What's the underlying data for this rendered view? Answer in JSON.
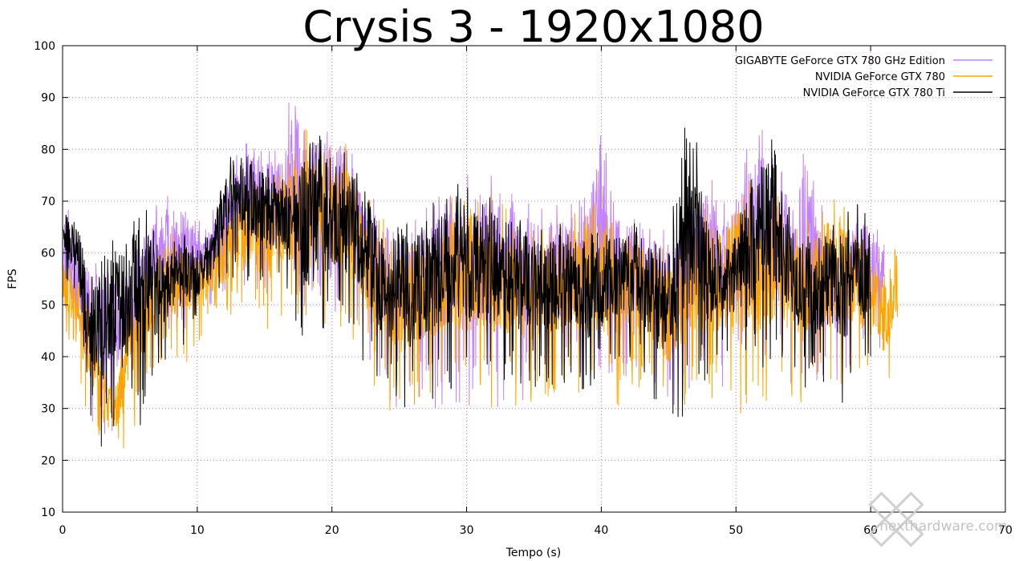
{
  "chart_data": {
    "type": "line",
    "title": "Crysis 3 - 1920x1080",
    "xlabel": "Tempo (s)",
    "ylabel": "FPS",
    "xlim": [
      0,
      70
    ],
    "ylim": [
      10,
      100
    ],
    "x_ticks": [
      0,
      10,
      20,
      30,
      40,
      50,
      60,
      70
    ],
    "y_ticks": [
      10,
      20,
      30,
      40,
      50,
      60,
      70,
      80,
      90,
      100
    ],
    "grid": true,
    "legend_position": "top-right",
    "series": [
      {
        "name": "GIGABYTE GeForce GTX 780 GHz Edition",
        "color": "#c080ff",
        "x_end": 61,
        "envelope": {
          "x": [
            0,
            1,
            2,
            3,
            4,
            5,
            6,
            7,
            8,
            9,
            10,
            11,
            12,
            13,
            14,
            15,
            16,
            17,
            18,
            19,
            20,
            21,
            22,
            23,
            24,
            25,
            26,
            27,
            28,
            29,
            30,
            31,
            32,
            33,
            34,
            35,
            36,
            37,
            38,
            39,
            40,
            41,
            42,
            43,
            44,
            45,
            46,
            47,
            48,
            49,
            50,
            51,
            52,
            53,
            54,
            55,
            56,
            57,
            58,
            59,
            60,
            61
          ],
          "high": [
            70,
            66,
            60,
            58,
            54,
            58,
            66,
            70,
            72,
            70,
            66,
            68,
            72,
            80,
            82,
            80,
            82,
            91,
            84,
            86,
            84,
            85,
            76,
            72,
            70,
            68,
            66,
            70,
            72,
            76,
            76,
            76,
            75,
            74,
            72,
            70,
            70,
            70,
            72,
            74,
            88,
            70,
            72,
            68,
            66,
            64,
            70,
            74,
            76,
            70,
            72,
            82,
            84,
            80,
            74,
            80,
            72,
            66,
            64,
            70,
            68,
            64
          ],
          "low": [
            45,
            40,
            22,
            23,
            27,
            36,
            36,
            40,
            44,
            44,
            50,
            50,
            52,
            54,
            52,
            50,
            50,
            48,
            44,
            50,
            48,
            46,
            44,
            38,
            30,
            30,
            30,
            30,
            30,
            30,
            30,
            30,
            30,
            30,
            31,
            32,
            34,
            34,
            36,
            30,
            34,
            36,
            36,
            38,
            34,
            26,
            30,
            34,
            32,
            34,
            36,
            34,
            34,
            36,
            34,
            34,
            34,
            34,
            36,
            38,
            40,
            40
          ]
        }
      },
      {
        "name": "NVIDIA GeForce GTX 780",
        "color": "#ffa500",
        "x_end": 62,
        "envelope": {
          "x": [
            0,
            1,
            2,
            3,
            4,
            5,
            6,
            7,
            8,
            9,
            10,
            11,
            12,
            13,
            14,
            15,
            16,
            17,
            18,
            19,
            20,
            21,
            22,
            23,
            24,
            25,
            26,
            27,
            28,
            29,
            30,
            31,
            32,
            33,
            34,
            35,
            36,
            37,
            38,
            39,
            40,
            41,
            42,
            43,
            44,
            45,
            46,
            47,
            48,
            49,
            50,
            51,
            52,
            53,
            54,
            55,
            56,
            57,
            58,
            59,
            60,
            61,
            62
          ],
          "high": [
            60,
            56,
            52,
            40,
            36,
            52,
            58,
            62,
            66,
            62,
            60,
            62,
            66,
            74,
            76,
            74,
            76,
            80,
            84,
            82,
            80,
            82,
            72,
            70,
            66,
            64,
            62,
            66,
            68,
            72,
            72,
            72,
            72,
            70,
            68,
            66,
            66,
            66,
            68,
            70,
            70,
            66,
            66,
            64,
            62,
            60,
            64,
            70,
            72,
            66,
            74,
            74,
            70,
            72,
            66,
            66,
            68,
            72,
            70,
            66,
            62,
            56,
            64
          ],
          "low": [
            44,
            40,
            24,
            19,
            21,
            22,
            34,
            36,
            38,
            38,
            42,
            46,
            48,
            48,
            46,
            44,
            46,
            44,
            42,
            46,
            46,
            44,
            42,
            34,
            30,
            28,
            30,
            30,
            30,
            30,
            30,
            30,
            30,
            30,
            30,
            30,
            32,
            32,
            34,
            30,
            32,
            30,
            32,
            34,
            32,
            26,
            30,
            32,
            30,
            32,
            28,
            30,
            30,
            32,
            32,
            30,
            32,
            32,
            34,
            36,
            34,
            33,
            36
          ]
        }
      },
      {
        "name": "NVIDIA GeForce GTX 780 Ti",
        "color": "#000000",
        "x_end": 60,
        "envelope": {
          "x": [
            0,
            1,
            2,
            3,
            4,
            5,
            6,
            7,
            8,
            9,
            10,
            11,
            12,
            13,
            14,
            15,
            16,
            17,
            18,
            19,
            20,
            21,
            22,
            23,
            24,
            25,
            26,
            27,
            28,
            29,
            30,
            31,
            32,
            33,
            34,
            35,
            36,
            37,
            38,
            39,
            40,
            41,
            42,
            43,
            44,
            45,
            46,
            47,
            48,
            49,
            50,
            51,
            52,
            53,
            54,
            55,
            56,
            57,
            58,
            59,
            60
          ],
          "high": [
            69,
            68,
            61,
            60,
            64,
            68,
            70,
            64,
            62,
            64,
            62,
            64,
            78,
            80,
            80,
            78,
            76,
            74,
            82,
            84,
            82,
            80,
            78,
            72,
            64,
            68,
            66,
            72,
            72,
            74,
            74,
            72,
            72,
            70,
            68,
            66,
            64,
            68,
            66,
            64,
            64,
            66,
            66,
            66,
            64,
            62,
            84,
            86,
            66,
            64,
            66,
            76,
            82,
            82,
            68,
            64,
            64,
            66,
            68,
            70,
            66
          ],
          "low": [
            56,
            50,
            24,
            22,
            21,
            26,
            25,
            34,
            40,
            42,
            46,
            50,
            54,
            54,
            54,
            52,
            52,
            50,
            38,
            40,
            44,
            42,
            40,
            36,
            32,
            30,
            28,
            30,
            32,
            32,
            32,
            34,
            32,
            32,
            32,
            34,
            34,
            34,
            36,
            32,
            36,
            38,
            40,
            36,
            30,
            30,
            23,
            34,
            36,
            38,
            40,
            36,
            36,
            40,
            38,
            34,
            34,
            36,
            30,
            32,
            40
          ]
        }
      }
    ]
  },
  "watermark": {
    "text": "nexthardware.com",
    "color": "#b8b8b8"
  }
}
